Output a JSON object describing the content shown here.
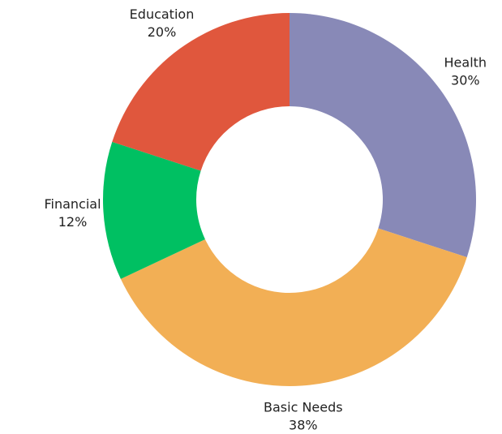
{
  "chart_data": {
    "type": "pie",
    "variant": "donut",
    "title": "",
    "legend": "none",
    "start_angle_deg": 0,
    "direction": "clockwise",
    "slices": [
      {
        "label": "Health",
        "value": 30,
        "value_label": "30%",
        "color": "#8889b7"
      },
      {
        "label": "Basic Needs",
        "value": 38,
        "value_label": "38%",
        "color": "#f2af55"
      },
      {
        "label": "Financial",
        "value": 12,
        "value_label": "12%",
        "color": "#00c062"
      },
      {
        "label": "Education",
        "value": 20,
        "value_label": "20%",
        "color": "#e0573d"
      }
    ]
  }
}
